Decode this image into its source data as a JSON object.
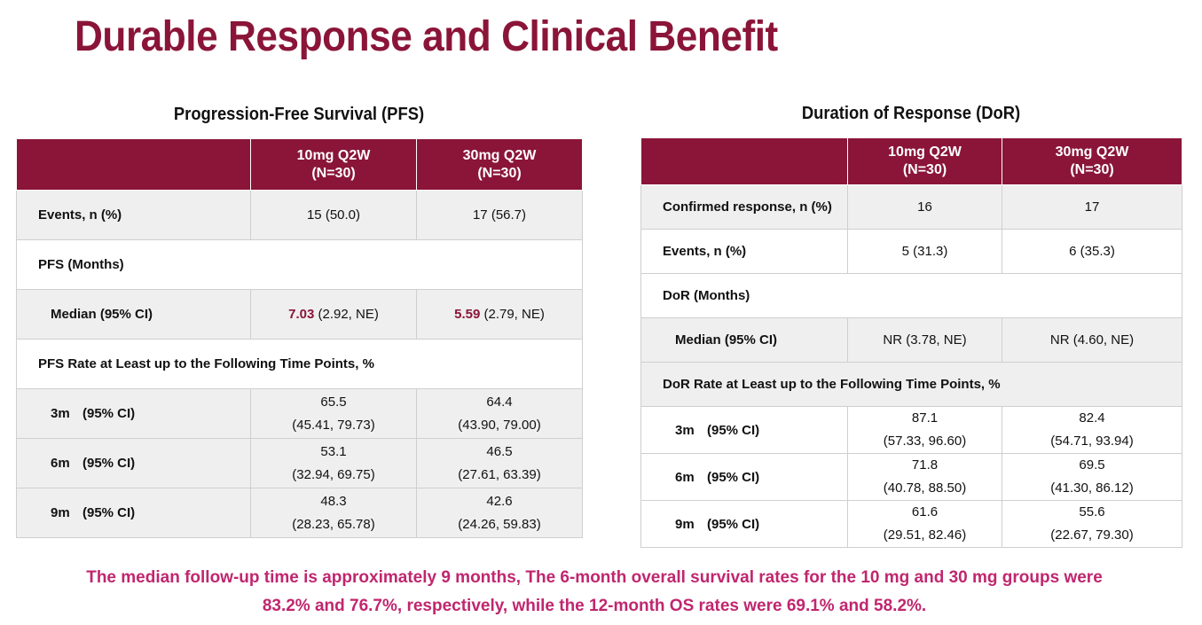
{
  "title": "Durable Response and Clinical Benefit",
  "pfs": {
    "title": "Progression-Free Survival (PFS)",
    "headers": [
      "",
      "10mg Q2W\n(N=30)",
      "30mg Q2W\n(N=30)"
    ],
    "events": {
      "label": "Events, n (%)",
      "v1": "15 (50.0)",
      "v2": "17 (56.7)"
    },
    "section": "PFS (Months)",
    "median": {
      "label": "Median (95% CI)",
      "v1_bold": "7.03",
      "v1_rest": " (2.92, NE)",
      "v2_bold": "5.59",
      "v2_rest": " (2.79, NE)"
    },
    "rate_label": "PFS Rate at Least up to the Following Time Points, %",
    "rates": [
      {
        "tp": "3m",
        "ci": "(95% CI)",
        "v1a": "65.5",
        "v1b": "(45.41, 79.73)",
        "v2a": "64.4",
        "v2b": "(43.90, 79.00)"
      },
      {
        "tp": "6m",
        "ci": "(95% CI)",
        "v1a": "53.1",
        "v1b": "(32.94, 69.75)",
        "v2a": "46.5",
        "v2b": "(27.61, 63.39)"
      },
      {
        "tp": "9m",
        "ci": "(95% CI)",
        "v1a": "48.3",
        "v1b": "(28.23, 65.78)",
        "v2a": "42.6",
        "v2b": "(24.26, 59.83)"
      }
    ]
  },
  "dor": {
    "title": "Duration of Response (DoR)",
    "headers": [
      "",
      "10mg Q2W\n(N=30)",
      "30mg Q2W\n(N=30)"
    ],
    "confirmed": {
      "label": "Confirmed response, n (%)",
      "v1": "16",
      "v2": "17"
    },
    "events": {
      "label": "Events, n (%)",
      "v1": "5 (31.3)",
      "v2": "6 (35.3)"
    },
    "section": "DoR (Months)",
    "median": {
      "label": "Median (95% CI)",
      "v1": "NR (3.78, NE)",
      "v2": "NR (4.60, NE)"
    },
    "rate_label": "DoR Rate at Least up to the Following Time Points, %",
    "rates": [
      {
        "tp": "3m",
        "ci": "(95% CI)",
        "v1a": "87.1",
        "v1b": "(57.33, 96.60)",
        "v2a": "82.4",
        "v2b": "(54.71, 93.94)"
      },
      {
        "tp": "6m",
        "ci": "(95% CI)",
        "v1a": "71.8",
        "v1b": "(40.78, 88.50)",
        "v2a": "69.5",
        "v2b": "(41.30, 86.12)"
      },
      {
        "tp": "9m",
        "ci": "(95% CI)",
        "v1a": "61.6",
        "v1b": "(29.51, 82.46)",
        "v2a": "55.6",
        "v2b": "(22.67, 79.30)"
      }
    ]
  },
  "footer": {
    "line1": "The median follow-up time is approximately 9 months, The 6-month overall survival rates for the 10 mg and 30 mg groups were",
    "line2": "83.2% and 76.7%, respectively, while the 12-month OS rates were 69.1% and 58.2%."
  }
}
